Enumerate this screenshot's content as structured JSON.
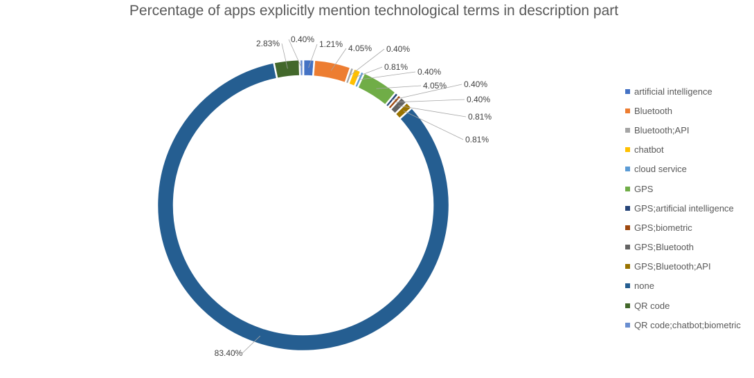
{
  "chart_data": {
    "type": "doughnut",
    "title": "Percentage of apps explicitly mention technological terms in description part",
    "legend_position": "right",
    "slices": [
      {
        "name": "artificial intelligence",
        "value": 1.21,
        "label": "1.21%",
        "color": "#4472C4"
      },
      {
        "name": "Bluetooth",
        "value": 4.05,
        "label": "4.05%",
        "color": "#ED7D31"
      },
      {
        "name": "Bluetooth;API",
        "value": 0.4,
        "label": "0.40%",
        "color": "#A5A5A5"
      },
      {
        "name": "chatbot",
        "value": 0.81,
        "label": "0.81%",
        "color": "#FFC000"
      },
      {
        "name": "cloud service",
        "value": 0.4,
        "label": "0.40%",
        "color": "#5B9BD5"
      },
      {
        "name": "GPS",
        "value": 4.05,
        "label": "4.05%",
        "color": "#70AD47"
      },
      {
        "name": "GPS;artificial intelligence",
        "value": 0.4,
        "label": "0.40%",
        "color": "#264478"
      },
      {
        "name": "GPS;biometric",
        "value": 0.4,
        "label": "0.40%",
        "color": "#9E480E"
      },
      {
        "name": "GPS;Bluetooth",
        "value": 0.81,
        "label": "0.81%",
        "color": "#636363"
      },
      {
        "name": "GPS;Bluetooth;API",
        "value": 0.81,
        "label": "0.81%",
        "color": "#997300"
      },
      {
        "name": "none",
        "value": 83.4,
        "label": "83.40%",
        "color": "#255E91"
      },
      {
        "name": "QR code",
        "value": 2.83,
        "label": "2.83%",
        "color": "#43682B"
      },
      {
        "name": "QR code;chatbot;biometric",
        "value": 0.4,
        "label": "0.40%",
        "color": "#698ED0"
      }
    ]
  }
}
